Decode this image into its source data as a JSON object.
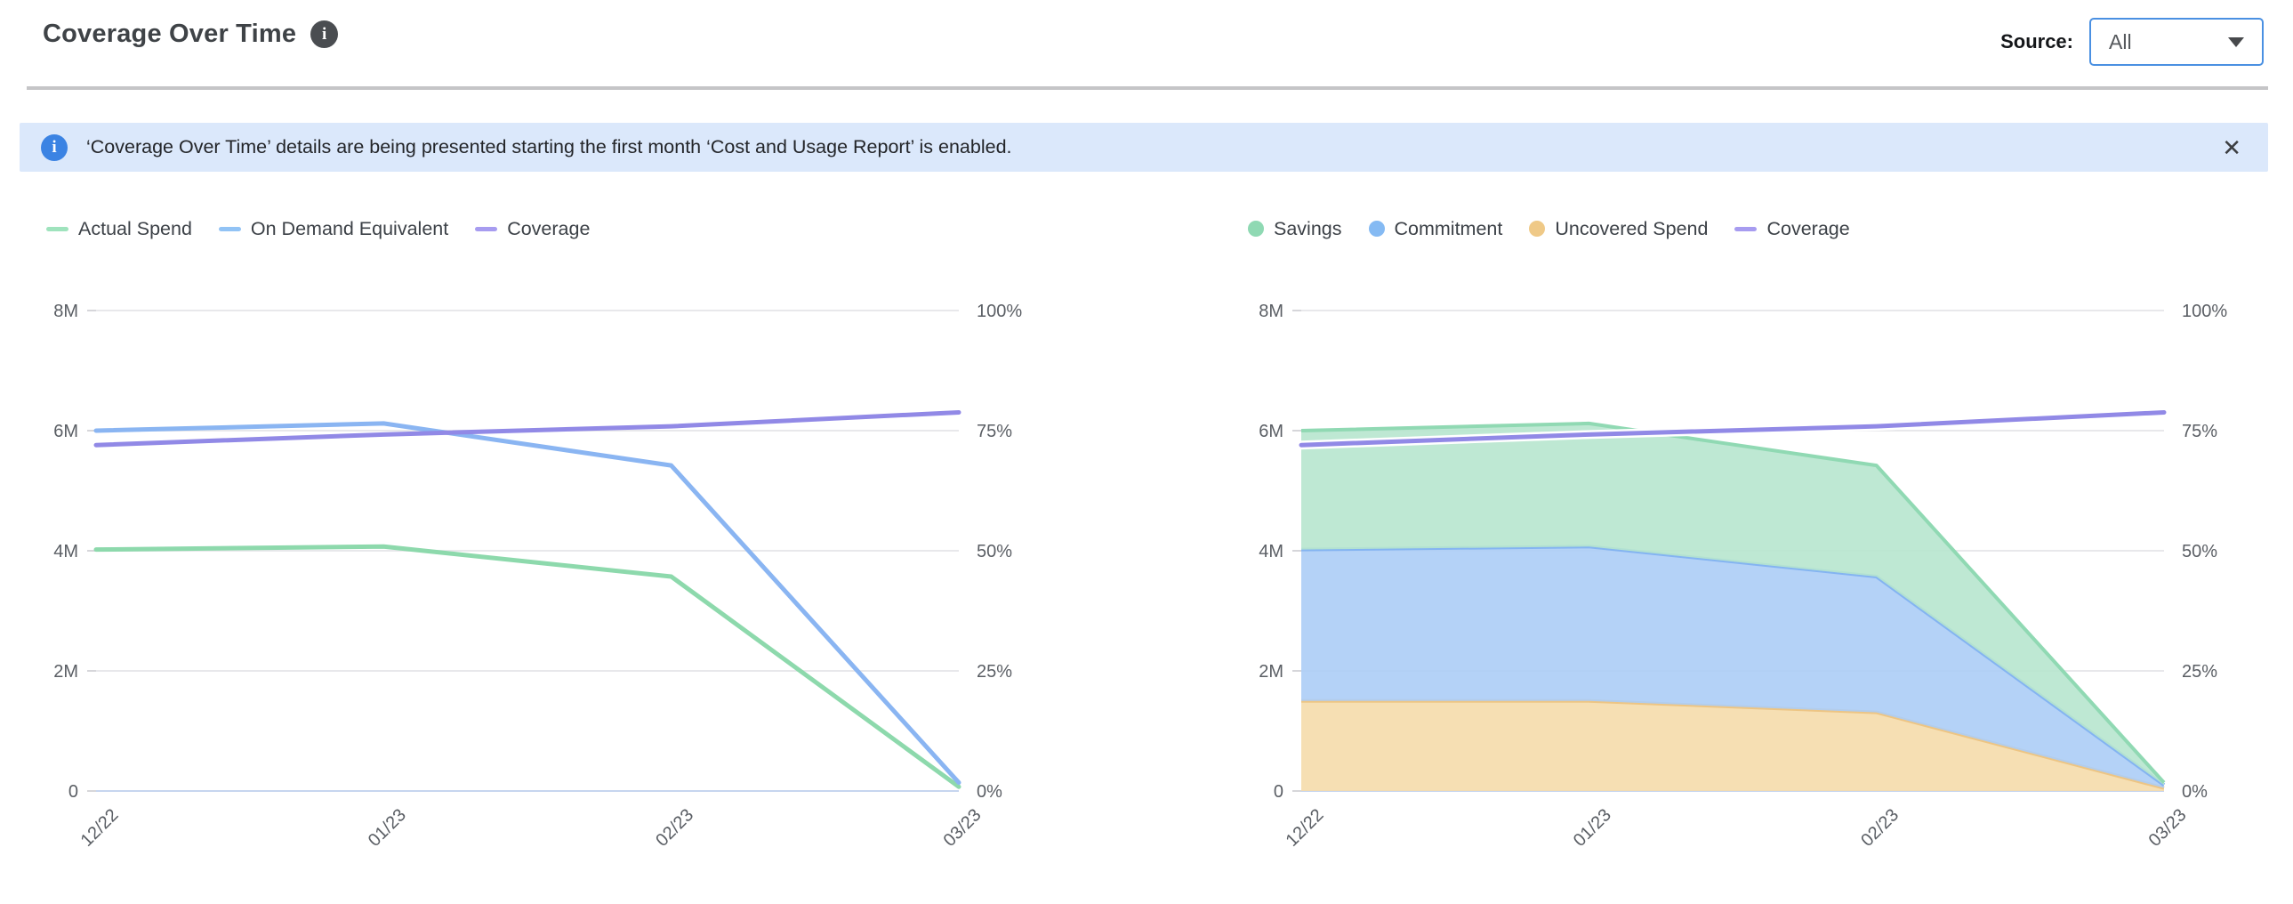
{
  "header": {
    "title": "Coverage Over Time",
    "source_label": "Source:",
    "source_value": "All"
  },
  "banner": {
    "text": "‘Coverage Over Time’ details are being presented starting the first month ‘Cost and Usage Report’ is enabled.",
    "close_glyph": "✕"
  },
  "colors": {
    "grid": "#e8e8eb",
    "baseline": "#c6d5ef",
    "axis_text": "#5a5e64",
    "accent_blue": "#4a90e2"
  },
  "chart_data": [
    {
      "type": "line",
      "name": "spend-lines",
      "categories": [
        "12/22",
        "01/23",
        "02/23",
        "03/23"
      ],
      "left_axis": {
        "label_unit": "M",
        "ticks": [
          "8M",
          "6M",
          "4M",
          "2M",
          "0"
        ],
        "ylim": [
          0,
          8
        ]
      },
      "right_axis": {
        "label_unit": "%",
        "ticks": [
          "100%",
          "75%",
          "50%",
          "25%",
          "0%"
        ],
        "ylim": [
          0,
          100
        ]
      },
      "grid": true,
      "legend_position": "top",
      "series": [
        {
          "name": "Actual Spend",
          "kind": "line",
          "unit": "M",
          "marker": "line",
          "color": "#8dd9ac",
          "legend_color": "#9fe3bd",
          "values": [
            4.02,
            4.07,
            3.57,
            0.07
          ]
        },
        {
          "name": "On Demand Equivalent",
          "kind": "line",
          "unit": "M",
          "marker": "line",
          "color": "#8ab5f2",
          "legend_color": "#92c3f5",
          "values": [
            6.0,
            6.12,
            5.42,
            0.14
          ]
        },
        {
          "name": "Coverage",
          "kind": "line",
          "unit": "pct",
          "marker": "line",
          "color": "#9189e6",
          "legend_color": "#a79cf0",
          "values": [
            72,
            74.2,
            75.9,
            78.8
          ]
        }
      ]
    },
    {
      "type": "area",
      "name": "coverage-stacked-areas",
      "categories": [
        "12/22",
        "01/23",
        "02/23",
        "03/23"
      ],
      "left_axis": {
        "label_unit": "M",
        "ticks": [
          "8M",
          "6M",
          "4M",
          "2M",
          "0"
        ],
        "ylim": [
          0,
          8
        ]
      },
      "right_axis": {
        "label_unit": "%",
        "ticks": [
          "100%",
          "75%",
          "50%",
          "25%",
          "0%"
        ],
        "ylim": [
          0,
          100
        ]
      },
      "grid": true,
      "legend_position": "top",
      "stacking_note": "areas stack bottom-to-top in reverse series order: Uncovered Spend, Commitment, Savings",
      "series": [
        {
          "name": "Savings",
          "kind": "area",
          "unit": "M",
          "marker": "dot",
          "fill": "#b7e5ce",
          "color": "#90d9b3",
          "legend_color": "#8fd9b3",
          "values": [
            1.98,
            2.05,
            1.85,
            0.04
          ]
        },
        {
          "name": "Commitment",
          "kind": "area",
          "unit": "M",
          "marker": "dot",
          "fill": "#accdf6",
          "color": "#84b4f1",
          "legend_color": "#85baf3",
          "values": [
            2.52,
            2.57,
            2.26,
            0.05
          ]
        },
        {
          "name": "Uncovered Spend",
          "kind": "area",
          "unit": "M",
          "marker": "dot",
          "fill": "#f5dcab",
          "color": "#edc584",
          "legend_color": "#efc987",
          "values": [
            1.5,
            1.5,
            1.31,
            0.05
          ]
        },
        {
          "name": "Coverage",
          "kind": "line",
          "unit": "pct",
          "marker": "line",
          "color": "#9189e6",
          "legend_color": "#a79cf0",
          "halo": "#ffffff",
          "values": [
            72,
            74.2,
            75.9,
            78.8
          ]
        }
      ]
    }
  ]
}
